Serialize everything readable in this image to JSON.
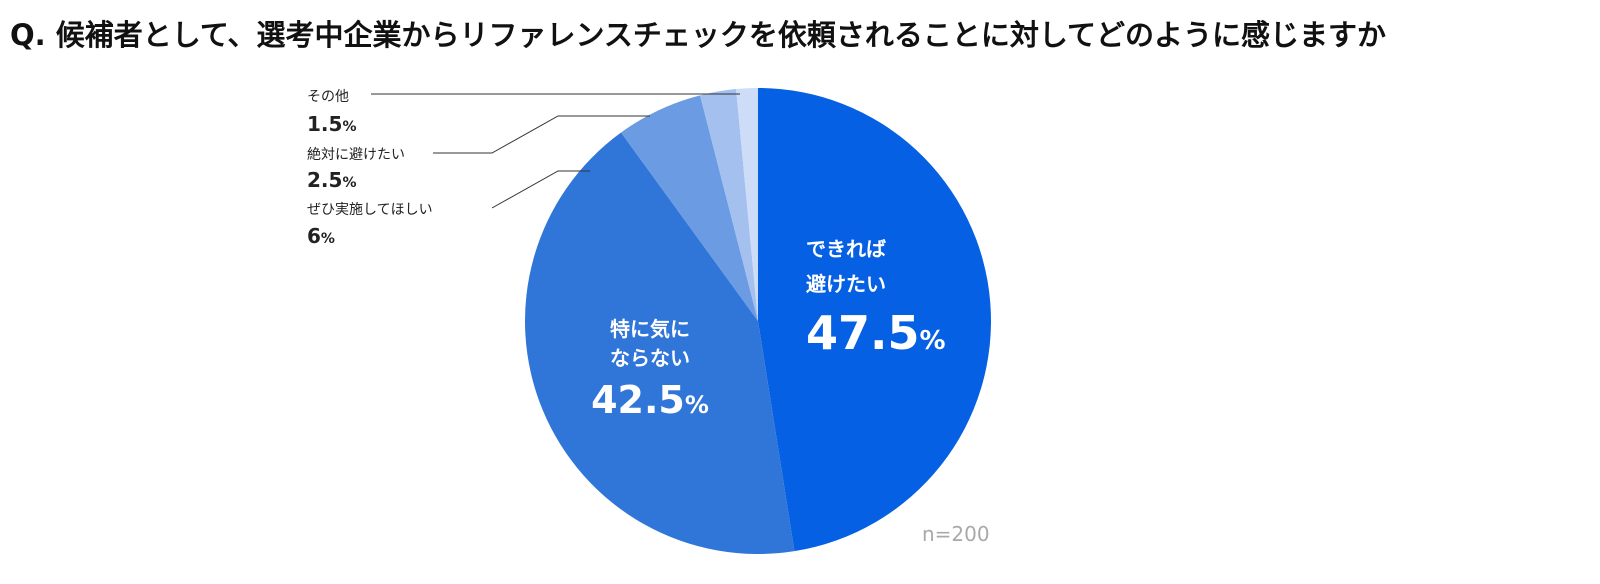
{
  "title": "Q. 候補者として、選考中企業からリファレンスチェックを依頼されることに対してどのように感じますか",
  "sample_size": "n=200",
  "chart_data": {
    "type": "pie",
    "start_angle_deg": 0,
    "direction": "clockwise",
    "slices": [
      {
        "label_lines": [
          "できれば",
          "避けたい"
        ],
        "value": 47.5,
        "value_text": "47.5",
        "unit": "%",
        "color": "#0660e3",
        "label_position": "inside"
      },
      {
        "label_lines": [
          "特に気に",
          "ならない"
        ],
        "value": 42.5,
        "value_text": "42.5",
        "unit": "%",
        "color": "#3075d8",
        "label_position": "inside"
      },
      {
        "label_lines": [
          "ぜひ実施してほしい"
        ],
        "value": 6,
        "value_text": "6",
        "unit": "%",
        "color": "#6b9be2",
        "label_position": "outside"
      },
      {
        "label_lines": [
          "絶対に避けたい"
        ],
        "value": 2.5,
        "value_text": "2.5",
        "unit": "%",
        "color": "#a3c0ef",
        "label_position": "outside"
      },
      {
        "label_lines": [
          "その他"
        ],
        "value": 1.5,
        "value_text": "1.5",
        "unit": "%",
        "color": "#cdddf7",
        "label_position": "outside"
      }
    ]
  }
}
